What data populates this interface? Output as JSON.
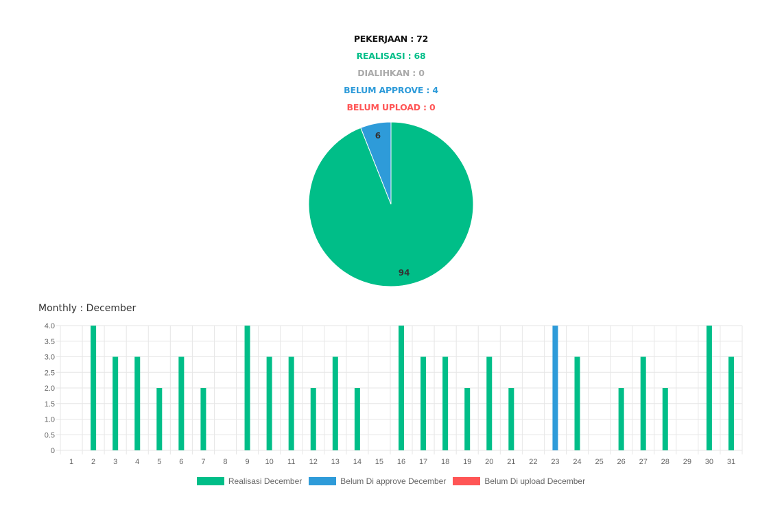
{
  "stats": {
    "pekerjaan": "PEKERJAAN : 72",
    "realisasi": "REALISASI : 68",
    "dialihkan": "DIALIHKAN : 0",
    "belum_approve": "BELUM APPROVE : 4",
    "belum_upload": "BELUM UPLOAD : 0"
  },
  "colors": {
    "pekerjaan": "#111111",
    "realisasi": "#00be88",
    "dialihkan": "#aaaaaa",
    "belum_approve": "#2e9bd9",
    "belum_upload": "#ff5555",
    "grid": "#e6e6e6",
    "axis_text": "#666666"
  },
  "monthly_title": "Monthly : December",
  "chart_data": [
    {
      "type": "pie",
      "slices": [
        {
          "value": 94,
          "label": "94",
          "color": "#00be88"
        },
        {
          "value": 6,
          "label": "6",
          "color": "#2e9bd9"
        }
      ]
    },
    {
      "type": "bar",
      "categories": [
        "1",
        "2",
        "3",
        "4",
        "5",
        "6",
        "7",
        "8",
        "9",
        "10",
        "11",
        "12",
        "13",
        "14",
        "15",
        "16",
        "17",
        "18",
        "19",
        "20",
        "21",
        "22",
        "23",
        "24",
        "25",
        "26",
        "27",
        "28",
        "29",
        "30",
        "31"
      ],
      "series": [
        {
          "name": "Realisasi December",
          "color": "#00be88",
          "values": [
            0,
            4,
            3,
            3,
            2,
            3,
            2,
            0,
            4,
            3,
            3,
            2,
            3,
            2,
            0,
            4,
            3,
            3,
            2,
            3,
            2,
            0,
            0,
            3,
            0,
            2,
            3,
            2,
            0,
            4,
            3
          ]
        },
        {
          "name": "Belum Di approve December",
          "color": "#2e9bd9",
          "values": [
            0,
            0,
            0,
            0,
            0,
            0,
            0,
            0,
            0,
            0,
            0,
            0,
            0,
            0,
            0,
            0,
            0,
            0,
            0,
            0,
            0,
            0,
            4,
            0,
            0,
            0,
            0,
            0,
            0,
            0,
            0
          ]
        },
        {
          "name": "Belum Di upload December",
          "color": "#ff5555",
          "values": [
            0,
            0,
            0,
            0,
            0,
            0,
            0,
            0,
            0,
            0,
            0,
            0,
            0,
            0,
            0,
            0,
            0,
            0,
            0,
            0,
            0,
            0,
            0,
            0,
            0,
            0,
            0,
            0,
            0,
            0,
            0
          ]
        }
      ],
      "yticks": [
        "0",
        "0.5",
        "1.0",
        "1.5",
        "2.0",
        "2.5",
        "3.0",
        "3.5",
        "4.0"
      ],
      "ylim": [
        0,
        4
      ],
      "grid": true,
      "legend": "bottom"
    }
  ]
}
